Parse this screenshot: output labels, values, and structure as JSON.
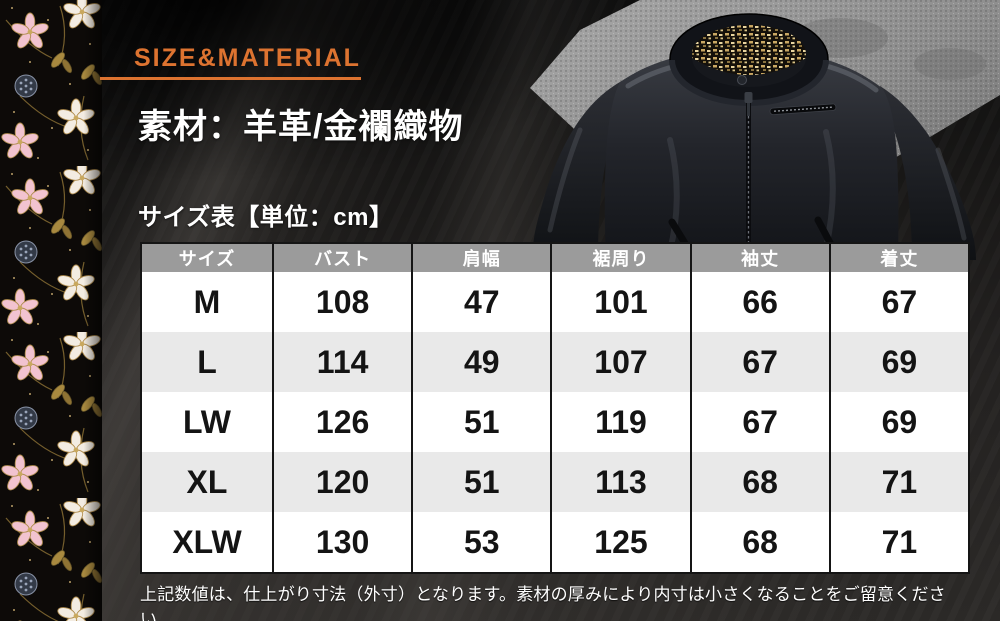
{
  "header": {
    "section_label": "SIZE&MATERIAL",
    "material_heading": "素材：羊革/金襴織物"
  },
  "table": {
    "title": "サイズ表【単位：cm】",
    "unit": "cm",
    "headers": [
      "サイズ",
      "バスト",
      "肩幅",
      "裾周り",
      "袖丈",
      "着丈"
    ],
    "rows": [
      {
        "size": "M",
        "values": [
          "108",
          "47",
          "101",
          "66",
          "67"
        ]
      },
      {
        "size": "L",
        "values": [
          "114",
          "49",
          "107",
          "67",
          "69"
        ]
      },
      {
        "size": "LW",
        "values": [
          "126",
          "51",
          "119",
          "67",
          "69"
        ]
      },
      {
        "size": "XL",
        "values": [
          "120",
          "51",
          "113",
          "68",
          "71"
        ]
      },
      {
        "size": "XLW",
        "values": [
          "130",
          "53",
          "125",
          "68",
          "71"
        ]
      }
    ]
  },
  "note": {
    "text": "上記数値は、仕上がり寸法（外寸）となります。素材の厚みにより内寸は小さくなることをご留意ください。"
  },
  "colors": {
    "accent_orange": "#DD7330",
    "table_header_bg": "#9B9B9B",
    "row_white": "#FFFFFF",
    "row_alt_gray": "#E9E9E9",
    "cell_text": "#141414",
    "light_text": "#FFFFFF"
  },
  "images": {
    "fabric_strip": "gold-brocade-floral-fabric",
    "product_photo": "black-leather-jacket-on-gray-stone"
  }
}
